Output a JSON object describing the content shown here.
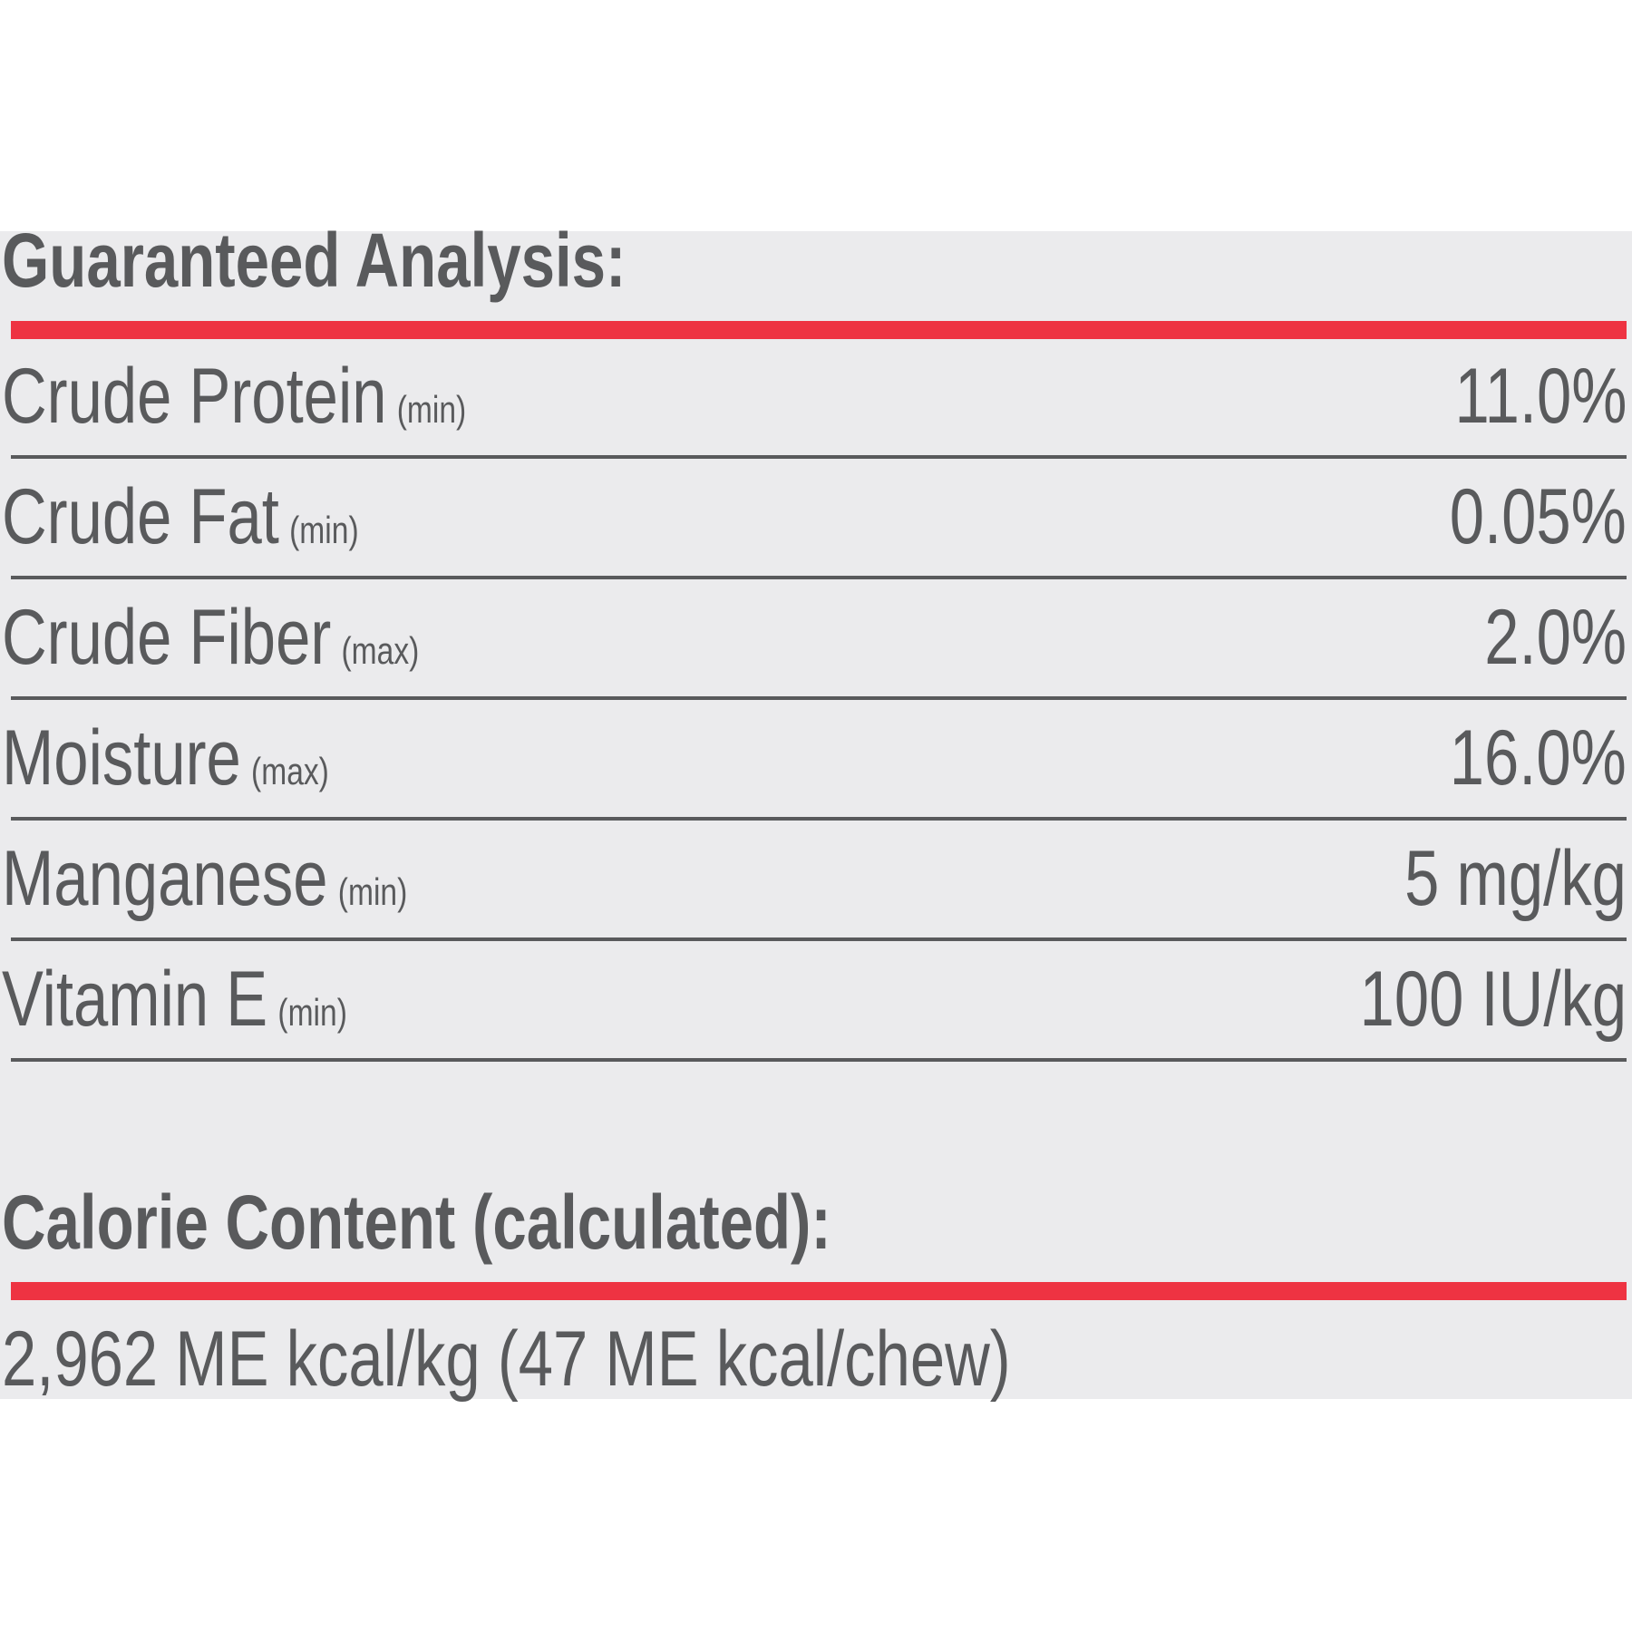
{
  "guaranteed_analysis": {
    "heading": "Guaranteed Analysis:",
    "rows": [
      {
        "name": "Crude Protein",
        "qualifier": "(min)",
        "value": "11.0%"
      },
      {
        "name": "Crude Fat",
        "qualifier": "(min)",
        "value": "0.05%"
      },
      {
        "name": "Crude Fiber",
        "qualifier": "(max)",
        "value": "2.0%"
      },
      {
        "name": "Moisture",
        "qualifier": "(max)",
        "value": "16.0%"
      },
      {
        "name": "Manganese",
        "qualifier": "(min)",
        "value": "5 mg/kg"
      },
      {
        "name": "Vitamin E",
        "qualifier": "(min)",
        "value": "100 IU/kg"
      }
    ]
  },
  "calorie_content": {
    "heading": "Calorie Content (calculated):",
    "value": "2,962 ME kcal/kg (47 ME kcal/chew)"
  },
  "colors": {
    "text": "#595a5c",
    "accent_rule": "#ee3342",
    "panel_background": "#ebebed",
    "page_background": "#ffffff"
  }
}
